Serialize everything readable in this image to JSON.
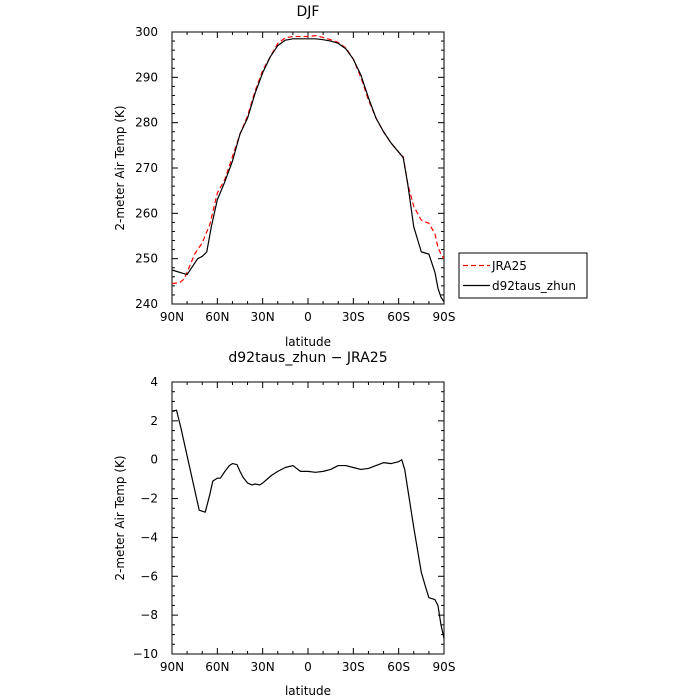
{
  "chart_data": [
    {
      "type": "line",
      "title": "DJF",
      "xlabel": "latitude",
      "ylabel": "2-meter Air Temp (K)",
      "xlim": [
        -90,
        90
      ],
      "ylim": [
        240,
        300
      ],
      "x_ticks": [
        -90,
        -60,
        -30,
        0,
        30,
        60,
        90
      ],
      "x_tick_labels": [
        "90N",
        "60N",
        "30N",
        "0",
        "30S",
        "60S",
        "90S"
      ],
      "y_ticks": [
        240,
        250,
        260,
        270,
        280,
        290,
        300
      ],
      "y_tick_labels": [
        "240",
        "250",
        "260",
        "270",
        "280",
        "290",
        "300"
      ],
      "grid": false,
      "legend_position": "right",
      "series": [
        {
          "name": "JRA25",
          "color": "#ff0000",
          "dash": "dashed",
          "x": [
            -90,
            -85,
            -82,
            -80,
            -75,
            -70,
            -65,
            -60,
            -55,
            -50,
            -45,
            -40,
            -35,
            -30,
            -25,
            -20,
            -15,
            -10,
            -5,
            0,
            5,
            10,
            15,
            20,
            25,
            30,
            35,
            40,
            45,
            50,
            55,
            60,
            63,
            66,
            70,
            75,
            80,
            84,
            86,
            88,
            90
          ],
          "y": [
            244.5,
            244.7,
            245.5,
            247.0,
            251.0,
            253.5,
            257.5,
            264.5,
            267.5,
            272.5,
            277.5,
            281.5,
            287.0,
            291.5,
            294.5,
            297.5,
            298.7,
            299.0,
            299.0,
            299.0,
            299.2,
            298.8,
            298.3,
            297.7,
            296.5,
            294.0,
            290.0,
            285.0,
            281.0,
            278.0,
            275.5,
            273.5,
            272.5,
            266.5,
            261.5,
            258.5,
            257.8,
            255.5,
            252.5,
            251.0,
            250.0
          ]
        },
        {
          "name": "d92taus_zhun",
          "color": "#000000",
          "dash": "solid",
          "x": [
            -90,
            -85,
            -80,
            -76,
            -73,
            -70,
            -67,
            -64,
            -60,
            -55,
            -50,
            -45,
            -40,
            -35,
            -30,
            -25,
            -20,
            -15,
            -10,
            -5,
            0,
            5,
            10,
            15,
            20,
            25,
            30,
            35,
            40,
            45,
            50,
            55,
            60,
            63,
            66,
            70,
            75,
            80,
            84,
            86,
            88,
            90
          ],
          "y": [
            247.5,
            247.0,
            246.5,
            248.5,
            250.0,
            250.5,
            251.5,
            257.0,
            263.0,
            267.0,
            271.5,
            277.5,
            281.0,
            286.5,
            291.0,
            294.5,
            297.0,
            298.2,
            298.5,
            298.5,
            298.5,
            298.5,
            298.3,
            298.0,
            297.5,
            296.3,
            294.0,
            290.5,
            285.5,
            281.0,
            278.0,
            275.5,
            273.5,
            272.3,
            266.5,
            257.0,
            251.5,
            251.0,
            247.0,
            243.5,
            241.5,
            240.5
          ]
        }
      ]
    },
    {
      "type": "line",
      "title": "d92taus_zhun − JRA25",
      "xlabel": "latitude",
      "ylabel": "2-meter Air Temp (K)",
      "xlim": [
        -90,
        90
      ],
      "ylim": [
        -10,
        4
      ],
      "x_ticks": [
        -90,
        -60,
        -30,
        0,
        30,
        60,
        90
      ],
      "x_tick_labels": [
        "90N",
        "60N",
        "30N",
        "0",
        "30S",
        "60S",
        "90S"
      ],
      "y_ticks": [
        -10,
        -8,
        -6,
        -4,
        -2,
        0,
        2,
        4
      ],
      "y_tick_labels": [
        "−10",
        "−8",
        "−6",
        "−4",
        "−2",
        "0",
        "2",
        "4"
      ],
      "grid": false,
      "series": [
        {
          "color": "#000000",
          "dash": "solid",
          "x": [
            -90,
            -87,
            -84,
            -80,
            -76,
            -72,
            -68,
            -65,
            -63,
            -60,
            -58,
            -55,
            -52,
            -50,
            -47,
            -45,
            -43,
            -40,
            -37,
            -35,
            -32,
            -30,
            -27,
            -24,
            -20,
            -15,
            -10,
            -5,
            0,
            5,
            10,
            15,
            20,
            25,
            30,
            35,
            40,
            45,
            50,
            55,
            60,
            62,
            64,
            66,
            70,
            75,
            78,
            80,
            84,
            86,
            88,
            90
          ],
          "y": [
            2.5,
            2.55,
            1.6,
            0.2,
            -1.2,
            -2.6,
            -2.7,
            -1.8,
            -1.1,
            -0.95,
            -0.95,
            -0.6,
            -0.3,
            -0.2,
            -0.25,
            -0.6,
            -0.9,
            -1.2,
            -1.3,
            -1.25,
            -1.3,
            -1.2,
            -1.0,
            -0.8,
            -0.6,
            -0.4,
            -0.3,
            -0.6,
            -0.6,
            -0.65,
            -0.6,
            -0.5,
            -0.3,
            -0.3,
            -0.4,
            -0.5,
            -0.45,
            -0.3,
            -0.15,
            -0.2,
            -0.1,
            0.0,
            -0.5,
            -1.5,
            -3.5,
            -5.8,
            -6.6,
            -7.1,
            -7.2,
            -7.5,
            -8.5,
            -9.2
          ]
        }
      ]
    }
  ]
}
